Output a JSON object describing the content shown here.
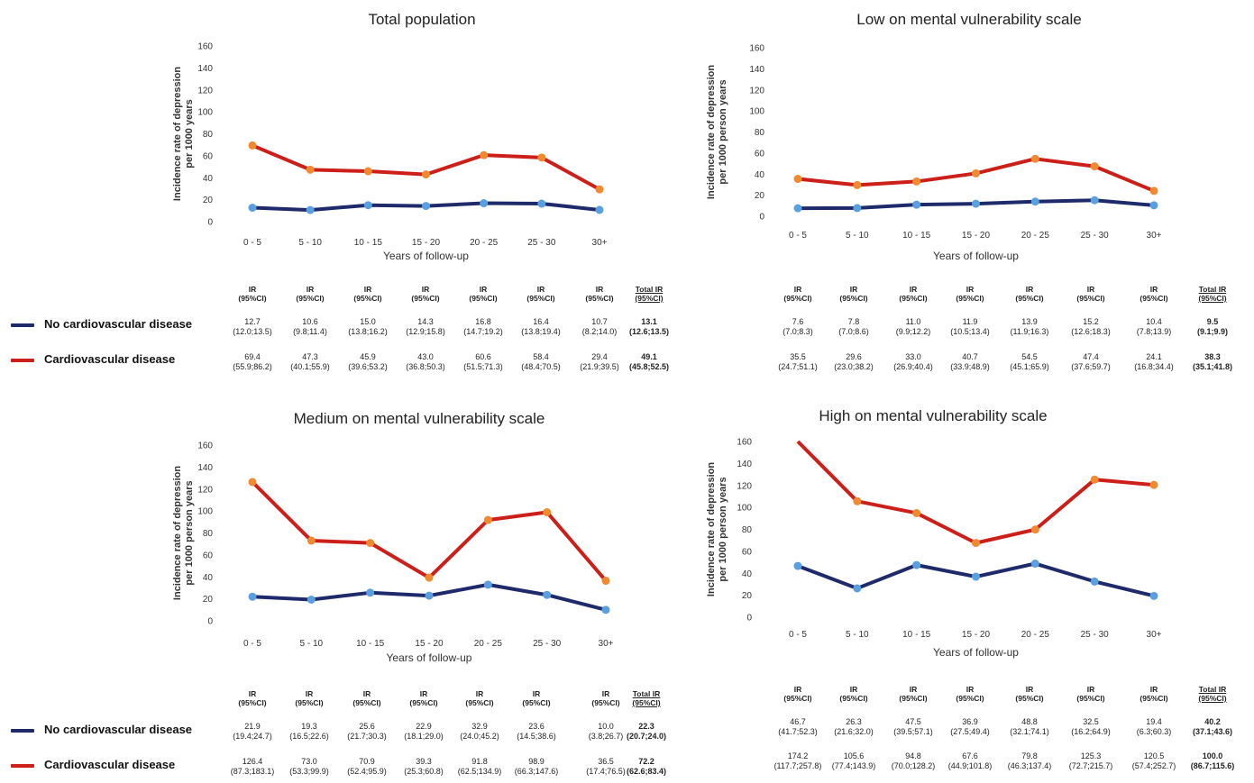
{
  "legend": {
    "items": [
      {
        "label": "No cardiovascular disease",
        "color": "#1f2a6b"
      },
      {
        "label": "Cardiovascular disease",
        "color": "#cc1f1a"
      }
    ]
  },
  "table_headers": {
    "ir_line1": "IR",
    "ir_line2": "(95%CI)",
    "total_line1": "Total IR",
    "total_line2": "(95%CI)"
  },
  "chart_data": [
    {
      "type": "line",
      "title": "Total population",
      "xlabel": "Years of follow-up",
      "ylabel": [
        "Incidence rate of depression",
        "per 1000 years"
      ],
      "ylim": [
        0,
        160
      ],
      "yticks": [
        0,
        20,
        40,
        60,
        80,
        100,
        120,
        140,
        160
      ],
      "categories": [
        "0 - 5",
        "5 - 10",
        "10 - 15",
        "15 - 20",
        "20 - 25",
        "25 - 30",
        "30+"
      ],
      "series": [
        {
          "name": "No cardiovascular disease",
          "line_color": "#1f2a6b",
          "marker_color": "#5aa0e0",
          "values": [
            12.7,
            10.6,
            15.0,
            14.3,
            16.8,
            16.4,
            10.7
          ],
          "ci": [
            "(12.0;13.5)",
            "(9.8;11.4)",
            "(13.8;16.2)",
            "(12.9;15.8)",
            "(14.7;19.2)",
            "(13.8;19.4)",
            "(8.2;14.0)"
          ],
          "total": "13.1",
          "total_ci": "(12.6;13.5)"
        },
        {
          "name": "Cardiovascular disease",
          "line_color": "#cc1f1a",
          "marker_color": "#f08a30",
          "values": [
            69.4,
            47.3,
            45.9,
            43.0,
            60.6,
            58.4,
            29.4
          ],
          "ci": [
            "(55.9;86.2)",
            "(40.1;55.9)",
            "(39.6;53.2)",
            "(36.8;50.3)",
            "(51.5;71.3)",
            "(48.4;70.5)",
            "(21.9;39.5)"
          ],
          "total": "49.1",
          "total_ci": "(45.8;52.5)"
        }
      ]
    },
    {
      "type": "line",
      "title": "Low on mental vulnerability scale",
      "xlabel": "Years of follow-up",
      "ylabel": [
        "Incidence rate of depression",
        "per 1000 person years"
      ],
      "ylim": [
        0,
        160
      ],
      "yticks": [
        0,
        20,
        40,
        60,
        80,
        100,
        120,
        140,
        160
      ],
      "categories": [
        "0 - 5",
        "5 - 10",
        "10 - 15",
        "15 - 20",
        "20 - 25",
        "25 - 30",
        "30+"
      ],
      "series": [
        {
          "name": "No cardiovascular disease",
          "line_color": "#1f2a6b",
          "marker_color": "#5aa0e0",
          "values": [
            7.6,
            7.8,
            11.0,
            11.9,
            13.9,
            15.2,
            10.4
          ],
          "ci": [
            "(7.0;8.3)",
            "(7.0;8.6)",
            "(9.9;12.2)",
            "(10.5;13.4)",
            "(11.9;16.3)",
            "(12.6;18.3)",
            "(7.8;13.9)"
          ],
          "total": "9.5",
          "total_ci": "(9.1;9.9)"
        },
        {
          "name": "Cardiovascular disease",
          "line_color": "#cc1f1a",
          "marker_color": "#f08a30",
          "values": [
            35.5,
            29.6,
            33.0,
            40.7,
            54.5,
            47.4,
            24.1
          ],
          "ci": [
            "(24.7;51.1)",
            "(23.0;38.2)",
            "(26.9;40.4)",
            "(33.9;48.9)",
            "(45.1;65.9)",
            "(37.6;59.7)",
            "(16.8;34.4)"
          ],
          "total": "38.3",
          "total_ci": "(35.1;41.8)"
        }
      ]
    },
    {
      "type": "line",
      "title": "Medium on mental vulnerability scale",
      "xlabel": "Years of follow-up",
      "ylabel": [
        "Incidence rate of depression",
        "per 1000 person years"
      ],
      "ylim": [
        0,
        160
      ],
      "yticks": [
        0,
        20,
        40,
        60,
        80,
        100,
        120,
        140,
        160
      ],
      "categories": [
        "0 - 5",
        "5 - 10",
        "10 - 15",
        "15 - 20",
        "20 - 25",
        "25 - 30",
        "30+"
      ],
      "series": [
        {
          "name": "No cardiovascular disease",
          "line_color": "#1f2a6b",
          "marker_color": "#5aa0e0",
          "values": [
            21.9,
            19.3,
            25.6,
            22.9,
            32.9,
            23.6,
            10.0
          ],
          "ci": [
            "(19.4;24.7)",
            "(16.5;22.6)",
            "(21.7;30.3)",
            "(18.1;29.0)",
            "(24.0;45.2)",
            "(14.5;38.6)",
            "(3.8;26.7)"
          ],
          "total": "22.3",
          "total_ci": "(20.7;24.0)"
        },
        {
          "name": "Cardiovascular disease",
          "line_color": "#cc1f1a",
          "marker_color": "#f08a30",
          "values": [
            126.4,
            73.0,
            70.9,
            39.3,
            91.8,
            98.9,
            36.5
          ],
          "ci": [
            "(87.3;183.1)",
            "(53.3;99.9)",
            "(52.4;95.9)",
            "(25.3;60.8)",
            "(62.5;134.9)",
            "(66.3;147.6)",
            "(17.4;76.5)"
          ],
          "total": "72.2",
          "total_ci": "(62.6;83.4)"
        }
      ]
    },
    {
      "type": "line",
      "title": "High on mental vulnerability scale",
      "xlabel": "Years of follow-up",
      "ylabel": [
        "Incidence rate of depression",
        "per 1000 person years"
      ],
      "ylim": [
        0,
        160
      ],
      "yticks": [
        0,
        20,
        40,
        60,
        80,
        100,
        120,
        140,
        160
      ],
      "categories": [
        "0 - 5",
        "5 - 10",
        "10 - 15",
        "15 - 20",
        "20 - 25",
        "25 - 30",
        "30+"
      ],
      "series": [
        {
          "name": "No cardiovascular disease",
          "line_color": "#1f2a6b",
          "marker_color": "#5aa0e0",
          "values": [
            46.7,
            26.3,
            47.5,
            36.9,
            48.8,
            32.5,
            19.4
          ],
          "ci": [
            "(41.7;52.3)",
            "(21.6;32.0)",
            "(39.5;57.1)",
            "(27.5;49.4)",
            "(32.1;74.1)",
            "(16.2;64.9)",
            "(6.3;60.3)"
          ],
          "total": "40.2",
          "total_ci": "(37.1;43.6)"
        },
        {
          "name": "Cardiovascular disease",
          "line_color": "#cc1f1a",
          "marker_color": "#f08a30",
          "values": [
            174.2,
            105.6,
            94.8,
            67.6,
            79.8,
            125.3,
            120.5
          ],
          "ci": [
            "(117.7;257.8)",
            "(77.4;143.9)",
            "(70.0;128.2)",
            "(44.9;101.8)",
            "(46.3;137.4)",
            "(72.7;215.7)",
            "(57.4;252.7)"
          ],
          "total": "100.0",
          "total_ci": "(86.7;115.6)"
        }
      ]
    }
  ]
}
